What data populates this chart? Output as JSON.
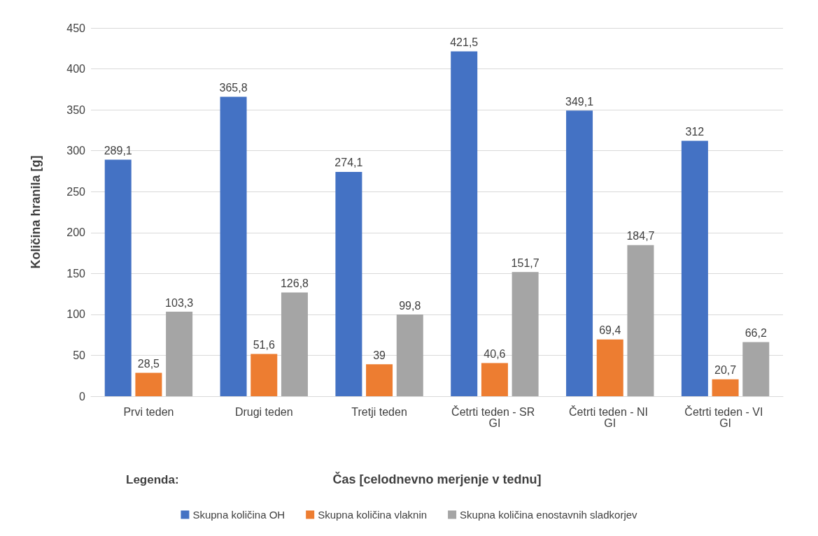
{
  "chart_data": {
    "type": "bar",
    "xlabel": "Čas [celodnevno merjenje v tednu]",
    "ylabel": "Količina hranila [g]",
    "categories": [
      "Prvi teden",
      "Drugi teden",
      "Tretji teden",
      "Četrti teden - SR GI",
      "Četrti teden - NI GI",
      "Četrti teden - VI GI"
    ],
    "series": [
      {
        "name": "Skupna količina OH",
        "color": "#4472c4",
        "values": [
          289.1,
          365.8,
          274.1,
          421.5,
          349.1,
          312
        ],
        "value_labels": [
          "289,1",
          "365,8",
          "274,1",
          "421,5",
          "349,1",
          "312"
        ]
      },
      {
        "name": "Skupna količina vlaknin",
        "color": "#ed7d31",
        "values": [
          28.5,
          51.6,
          39,
          40.6,
          69.4,
          20.7
        ],
        "value_labels": [
          "28,5",
          "51,6",
          "39",
          "40,6",
          "69,4",
          "20,7"
        ]
      },
      {
        "name": "Skupna količina enostavnih sladkorjev",
        "color": "#a5a5a5",
        "values": [
          103.3,
          126.8,
          99.8,
          151.7,
          184.7,
          66.2
        ],
        "value_labels": [
          "103,3",
          "126,8",
          "99,8",
          "151,7",
          "184,7",
          "66,2"
        ]
      }
    ],
    "ylim": [
      0,
      450
    ],
    "yticks": [
      0,
      50,
      100,
      150,
      200,
      250,
      300,
      350,
      400,
      450
    ],
    "grid": "y",
    "legend": "bottom",
    "annotations": [
      "Legenda:"
    ]
  }
}
